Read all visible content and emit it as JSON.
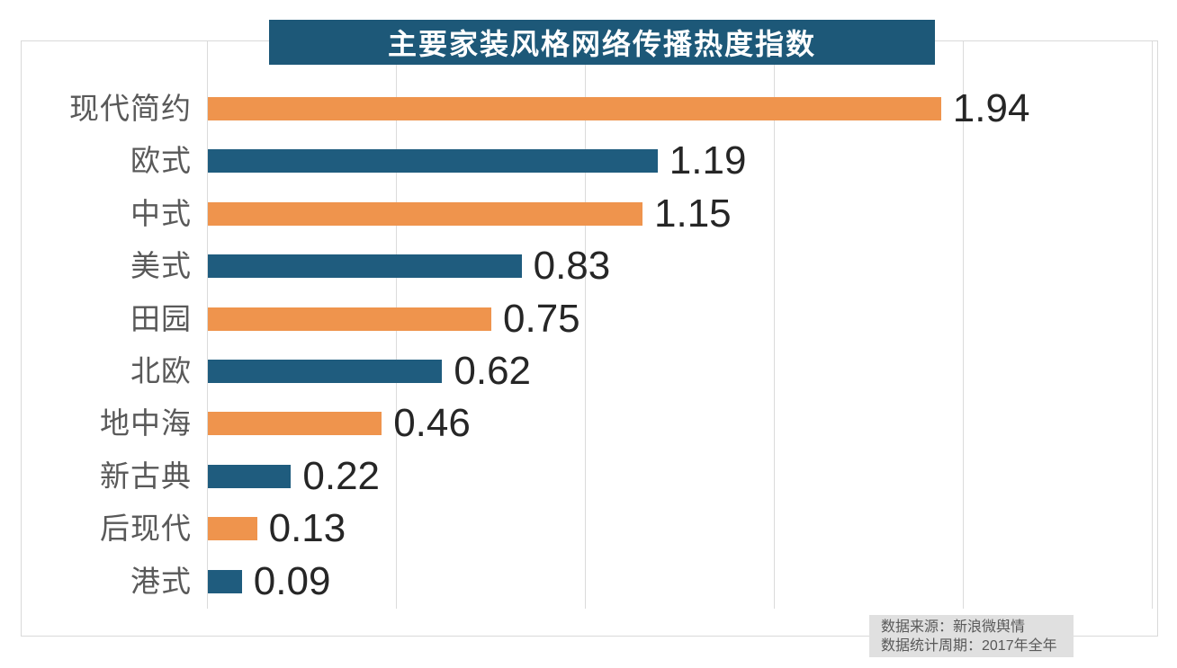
{
  "title": "主要家装风格网络传播热度指数",
  "chart_data": {
    "type": "bar",
    "orientation": "horizontal",
    "title": "主要家装风格网络传播热度指数",
    "categories": [
      "现代简约",
      "欧式",
      "中式",
      "美式",
      "田园",
      "北欧",
      "地中海",
      "新古典",
      "后现代",
      "港式"
    ],
    "values": [
      1.94,
      1.19,
      1.15,
      0.83,
      0.75,
      0.62,
      0.46,
      0.22,
      0.13,
      0.09
    ],
    "xlim": [
      0,
      2.5
    ],
    "grid_interval": 0.5,
    "grid": true,
    "value_labels_shown": true,
    "series_colors": [
      "#EF944D",
      "#1F5C7E"
    ]
  },
  "footer": {
    "line1": "数据来源：新浪微舆情",
    "line2": "数据统计周期：2017年全年"
  },
  "colors": {
    "accent_orange": "#EF944D",
    "accent_blue": "#1F5C7E",
    "title_bg": "#1D5878",
    "title_text": "#FFFFFF",
    "frame_border": "#D9D9D9",
    "grid_line": "#DBDBDB",
    "category_label": "#595959",
    "value_label": "#262626",
    "footer_bg": "#E0E0E0",
    "footer_text": "#595959"
  }
}
